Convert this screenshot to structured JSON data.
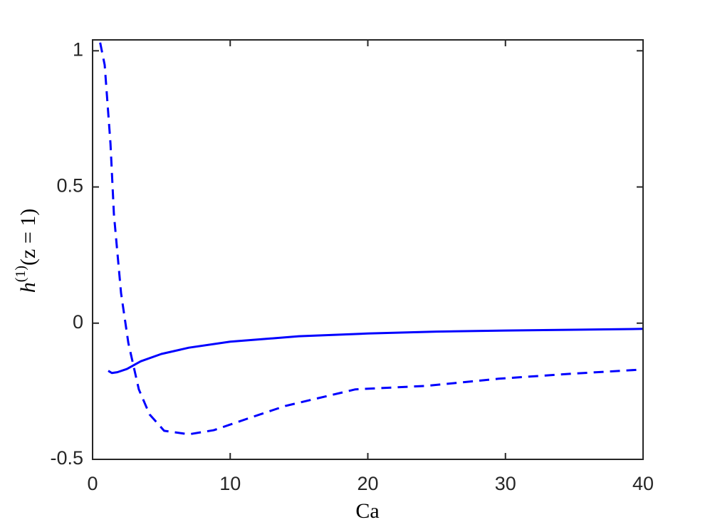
{
  "chart_data": {
    "type": "line",
    "xlabel": "Ca",
    "ylabel": [
      "h",
      "(1)",
      "(z = 1)"
    ],
    "xlim": [
      0,
      40
    ],
    "xticks": [
      0,
      10,
      20,
      30,
      40
    ],
    "ylim": [
      -0.5,
      1.04
    ],
    "yticks": [
      -0.5,
      0,
      0.5,
      1
    ],
    "series": [
      {
        "color": "#0000ff",
        "dash": false,
        "x": [
          1.14,
          1.4,
          1.8,
          2.5,
          3.5,
          5,
          7,
          10,
          15,
          20,
          25,
          30,
          35,
          40
        ],
        "values": [
          -0.175,
          -0.183,
          -0.18,
          -0.168,
          -0.14,
          -0.113,
          -0.09,
          -0.068,
          -0.048,
          -0.038,
          -0.031,
          -0.027,
          -0.024,
          -0.021
        ]
      },
      {
        "color": "#0000ff",
        "dash": true,
        "x": [
          0.55,
          0.88,
          1.3,
          1.55,
          2.07,
          2.6,
          3.36,
          4.14,
          5.2,
          7.0,
          8.8,
          11.4,
          14,
          19.1,
          24.3,
          29.5,
          34.7,
          40
        ],
        "values": [
          1.03,
          0.948,
          0.66,
          0.4,
          0.11,
          -0.073,
          -0.243,
          -0.335,
          -0.395,
          -0.408,
          -0.393,
          -0.348,
          -0.304,
          -0.243,
          -0.23,
          -0.204,
          -0.186,
          -0.17
        ]
      }
    ]
  }
}
